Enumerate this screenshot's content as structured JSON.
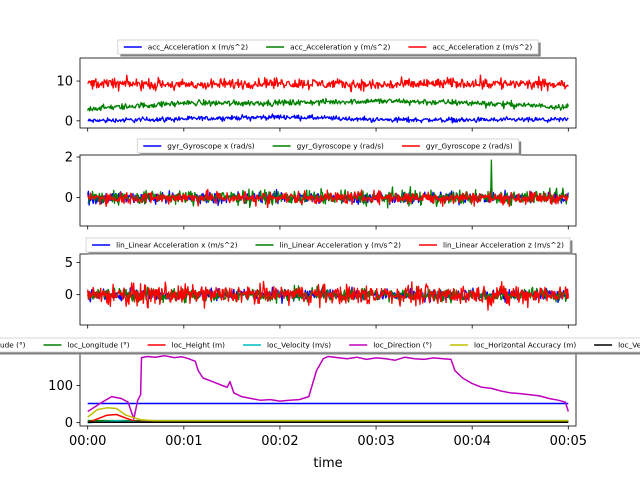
{
  "colors": {
    "blue": "#0000ff",
    "green": "#008000",
    "red": "#ff0000",
    "cyan": "#00bfbf",
    "magenta": "#bf00bf",
    "olive": "#bfbf00",
    "black": "#000000"
  },
  "xaxis": {
    "label": "time",
    "ticks": [
      "00:00",
      "00:01",
      "00:02",
      "00:03",
      "00:04",
      "00:05"
    ],
    "range_minutes": [
      -0.08,
      5.08
    ]
  },
  "chart_data": [
    {
      "type": "line",
      "ylim": [
        -1.8,
        15.8
      ],
      "yticks": [
        0,
        10
      ],
      "grid": false,
      "legend": "top-center",
      "series": [
        {
          "name": "acc_Acceleration x (m/s^2)",
          "color": "#0000ff",
          "mean": 0.3,
          "spread": 0.9,
          "x": [
            0,
            1,
            2,
            3,
            4,
            5
          ],
          "y": [
            0.0,
            0.5,
            1.0,
            0.3,
            0.2,
            0.3
          ]
        },
        {
          "name": "acc_Acceleration y (m/s^2)",
          "color": "#008000",
          "mean": 4.0,
          "spread": 1.1,
          "x": [
            0,
            1,
            2,
            3,
            4,
            5
          ],
          "y": [
            3.0,
            4.5,
            4.5,
            5.0,
            4.5,
            3.5
          ]
        },
        {
          "name": "acc_Acceleration z (m/s^2)",
          "color": "#ff0000",
          "mean": 9.2,
          "spread": 2.0,
          "x": [
            0,
            1,
            2,
            3,
            4,
            5
          ],
          "y": [
            9.5,
            9.0,
            9.5,
            9.0,
            9.5,
            9.0
          ]
        }
      ]
    },
    {
      "type": "line",
      "ylim": [
        -1.4,
        2.1
      ],
      "yticks": [
        0,
        2
      ],
      "grid": false,
      "legend": "top-center",
      "series": [
        {
          "name": "gyr_Gyroscope x (rad/s)",
          "color": "#0000ff",
          "mean": 0.0,
          "spread": 0.4,
          "x": [
            0,
            1,
            2,
            3,
            4,
            5
          ],
          "y": [
            0,
            0,
            0,
            0,
            0,
            0
          ]
        },
        {
          "name": "gyr_Gyroscope y (rad/s)",
          "color": "#008000",
          "mean": 0.0,
          "spread": 0.5,
          "x": [
            0,
            1,
            2,
            3,
            4,
            5
          ],
          "y": [
            0,
            0,
            0,
            0,
            0,
            0
          ],
          "peak": {
            "x": 4.2,
            "y": 1.85
          }
        },
        {
          "name": "gyr_Gyroscope z (rad/s)",
          "color": "#ff0000",
          "mean": 0.0,
          "spread": 0.45,
          "x": [
            0,
            1,
            2,
            3,
            4,
            5
          ],
          "y": [
            0,
            0,
            0,
            0,
            0,
            0
          ]
        }
      ]
    },
    {
      "type": "line",
      "ylim": [
        -4.7,
        6.3
      ],
      "yticks": [
        0,
        5
      ],
      "grid": false,
      "legend": "top-center",
      "series": [
        {
          "name": "lin_Linear Acceleration x (m/s^2)",
          "color": "#0000ff",
          "mean": 0.0,
          "spread": 1.2,
          "x": [
            0,
            1,
            2,
            3,
            4,
            5
          ],
          "y": [
            0,
            0,
            0,
            0,
            0,
            0
          ]
        },
        {
          "name": "lin_Linear Acceleration y (m/s^2)",
          "color": "#008000",
          "mean": 0.0,
          "spread": 1.5,
          "x": [
            0,
            1,
            2,
            3,
            4,
            5
          ],
          "y": [
            0,
            0,
            0,
            0,
            0,
            0
          ]
        },
        {
          "name": "lin_Linear Acceleration z (m/s^2)",
          "color": "#ff0000",
          "mean": 0.0,
          "spread": 2.2,
          "x": [
            0,
            1,
            2,
            3,
            4,
            5
          ],
          "y": [
            0,
            0,
            0,
            0,
            0,
            0
          ]
        }
      ]
    },
    {
      "type": "line",
      "ylim": [
        -9,
        190
      ],
      "yticks": [
        0,
        100
      ],
      "grid": false,
      "legend": "top-center",
      "series": [
        {
          "name": "loc_Latitude (°)",
          "color": "#0000ff",
          "x": [
            0,
            5
          ],
          "y": [
            51.5,
            51.5
          ]
        },
        {
          "name": "loc_Longitude (°)",
          "color": "#008000",
          "x": [
            0,
            5
          ],
          "y": [
            5.5,
            5.5
          ]
        },
        {
          "name": "loc_Height (m)",
          "color": "#ff0000",
          "x": [
            0,
            0.1,
            0.2,
            0.3,
            0.4,
            0.5,
            5
          ],
          "y": [
            0,
            10,
            20,
            22,
            12,
            3,
            3
          ]
        },
        {
          "name": "loc_Velocity (m/s)",
          "color": "#00bfbf",
          "x": [
            0,
            0.3,
            0.5,
            5
          ],
          "y": [
            0,
            5,
            2,
            1
          ]
        },
        {
          "name": "loc_Direction (°)",
          "color": "#bf00bf",
          "x": [
            0,
            0.15,
            0.25,
            0.35,
            0.42,
            0.48,
            0.52,
            0.55,
            0.56,
            0.62,
            0.7,
            0.8,
            0.9,
            0.98,
            1.05,
            1.12,
            1.15,
            1.2,
            1.3,
            1.4,
            1.45,
            1.48,
            1.52,
            1.6,
            1.7,
            1.8,
            1.9,
            2.0,
            2.1,
            2.2,
            2.3,
            2.38,
            2.45,
            2.5,
            2.6,
            2.7,
            2.8,
            2.9,
            3.0,
            3.1,
            3.2,
            3.3,
            3.4,
            3.5,
            3.6,
            3.7,
            3.78,
            3.82,
            3.9,
            4.0,
            4.1,
            4.2,
            4.3,
            4.4,
            4.5,
            4.6,
            4.7,
            4.8,
            4.9,
            4.97,
            5.0
          ],
          "y": [
            30,
            55,
            70,
            65,
            55,
            10,
            60,
            75,
            175,
            178,
            176,
            180,
            175,
            177,
            172,
            165,
            140,
            120,
            110,
            100,
            95,
            110,
            80,
            70,
            65,
            60,
            62,
            58,
            60,
            62,
            70,
            140,
            172,
            178,
            175,
            172,
            176,
            170,
            174,
            172,
            168,
            176,
            172,
            170,
            174,
            172,
            170,
            140,
            120,
            105,
            95,
            92,
            85,
            80,
            78,
            75,
            72,
            65,
            60,
            55,
            30
          ]
        },
        {
          "name": "loc_Horizontal Accuracy (m)",
          "color": "#bfbf00",
          "x": [
            0,
            0.1,
            0.2,
            0.3,
            0.4,
            0.55,
            0.7,
            5
          ],
          "y": [
            15,
            35,
            40,
            38,
            20,
            8,
            5,
            5
          ]
        },
        {
          "name": "loc_Vertical Accuracy (m)",
          "color": "#000000",
          "x": [
            0,
            5
          ],
          "y": [
            1,
            1
          ]
        }
      ]
    }
  ]
}
